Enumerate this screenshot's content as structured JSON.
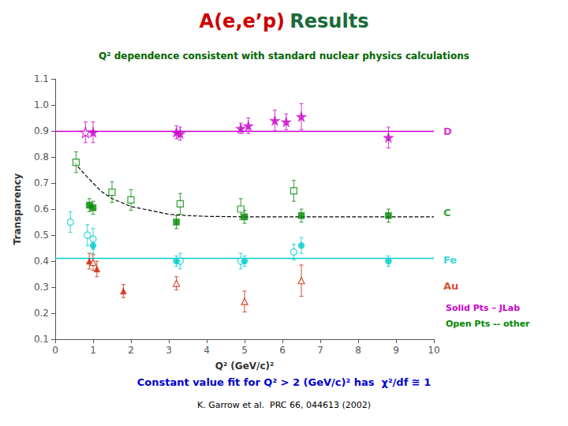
{
  "chart_data": {
    "type": "scatter",
    "title_parts": [
      {
        "text": "A(e,e’p)",
        "color": "#cc0000"
      },
      {
        "text": "Results",
        "color": "#1a6b3a"
      }
    ],
    "subtitle": "Q² dependence consistent with standard nuclear physics calculations",
    "subtitle_color": "#006600",
    "xlabel": "Q² (GeV/c)²",
    "ylabel": "Transparency",
    "xlim": [
      0,
      10
    ],
    "xticks": [
      0,
      1,
      2,
      3,
      4,
      5,
      6,
      7,
      8,
      9,
      10
    ],
    "ylim": [
      0.1,
      1.1
    ],
    "yticks": [
      0.1,
      0.2,
      0.3,
      0.4,
      0.5,
      0.6,
      0.7,
      0.8,
      0.9,
      {
        "value": 1.0,
        "label": "1.0"
      },
      1.1
    ],
    "grid": false,
    "reference_lines": [
      {
        "y": 0.9,
        "color": "#cc00cc"
      },
      {
        "y": 0.405,
        "color": "#00cccc"
      }
    ],
    "series": [
      {
        "type": "line",
        "line_style": "dashed",
        "color": "#000000",
        "x": [
          0.5,
          0.8,
          1.0,
          1.2,
          1.5,
          2.0,
          2.5,
          3.0,
          3.5,
          4.0,
          5.0,
          6.0,
          7.0,
          8.0,
          9.0,
          10.0
        ],
        "values": [
          0.78,
          0.73,
          0.7,
          0.67,
          0.64,
          0.61,
          0.595,
          0.58,
          0.575,
          0.572,
          0.57,
          0.57,
          0.57,
          0.57,
          0.57,
          0.57
        ]
      },
      {
        "type": "scatter",
        "marker": "star-open",
        "color": "#cc00cc",
        "x": [
          0.8
        ],
        "values": [
          0.895
        ],
        "yerr": [
          0.04
        ]
      },
      {
        "type": "scatter",
        "marker": "star",
        "color": "#cc00cc",
        "x": [
          1.0,
          3.2,
          3.3,
          4.9,
          5.1,
          5.8,
          6.1,
          6.5,
          8.8
        ],
        "values": [
          0.895,
          0.895,
          0.89,
          0.91,
          0.92,
          0.94,
          0.935,
          0.955,
          0.875
        ],
        "yerr": [
          0.04,
          0.025,
          0.025,
          0.02,
          0.03,
          0.04,
          0.03,
          0.05,
          0.04
        ]
      },
      {
        "type": "scatter",
        "marker": "square-open",
        "color": "#008800",
        "x": [
          0.55,
          1.5,
          2.0,
          3.3,
          4.9,
          6.3
        ],
        "values": [
          0.78,
          0.665,
          0.635,
          0.62,
          0.6,
          0.67
        ],
        "yerr": [
          0.04,
          0.04,
          0.04,
          0.04,
          0.04,
          0.04
        ]
      },
      {
        "type": "scatter",
        "marker": "square",
        "color": "#008800",
        "x": [
          0.9,
          1.0,
          3.2,
          5.0,
          6.5,
          8.8
        ],
        "values": [
          0.615,
          0.605,
          0.55,
          0.57,
          0.575,
          0.575
        ],
        "yerr": [
          0.025,
          0.025,
          0.025,
          0.025,
          0.025,
          0.025
        ]
      },
      {
        "type": "scatter",
        "marker": "circle-open",
        "color": "#00cccc",
        "x": [
          0.4,
          0.85,
          1.0,
          3.3,
          4.9,
          6.3
        ],
        "values": [
          0.55,
          0.5,
          0.485,
          0.4,
          0.4,
          0.435
        ],
        "yerr": [
          0.04,
          0.04,
          0.04,
          0.03,
          0.03,
          0.03
        ]
      },
      {
        "type": "scatter",
        "marker": "circle",
        "color": "#00cccc",
        "x": [
          1.0,
          3.2,
          5.0,
          6.5,
          8.8
        ],
        "values": [
          0.46,
          0.4,
          0.4,
          0.46,
          0.4
        ],
        "yerr": [
          0.03,
          0.02,
          0.02,
          0.03,
          0.02
        ]
      },
      {
        "type": "scatter",
        "marker": "triangle",
        "color": "#cc2200",
        "x": [
          0.9,
          1.1,
          1.8
        ],
        "values": [
          0.4,
          0.37,
          0.285
        ],
        "yerr": [
          0.03,
          0.03,
          0.025
        ]
      },
      {
        "type": "scatter",
        "marker": "triangle-open",
        "color": "#cc2200",
        "x": [
          1.0,
          3.2,
          5.0,
          6.5
        ],
        "values": [
          0.395,
          0.315,
          0.245,
          0.325
        ],
        "yerr": [
          0.03,
          0.025,
          0.04,
          0.06
        ]
      }
    ],
    "annotations": [
      {
        "text": "D",
        "y": 0.9,
        "color": "#cc00cc"
      },
      {
        "text": "C",
        "y": 0.585,
        "color": "#008800"
      },
      {
        "text": "Fe",
        "y": 0.405,
        "color": "#00cccc"
      },
      {
        "text": "Au",
        "y": 0.305,
        "color": "#cc2200"
      }
    ],
    "notes": [
      {
        "text": "Solid Pts – JLab",
        "color": "#cc00cc"
      },
      {
        "text": "Open Pts -- other",
        "color": "#008800"
      }
    ],
    "footnote": "Constant value fit for Q² > 2 (GeV/c)² has  χ²/df ≅ 1",
    "footnote_color": "#0000cc",
    "citation": "K. Garrow et al.  PRC 66, 044613 (2002)"
  }
}
